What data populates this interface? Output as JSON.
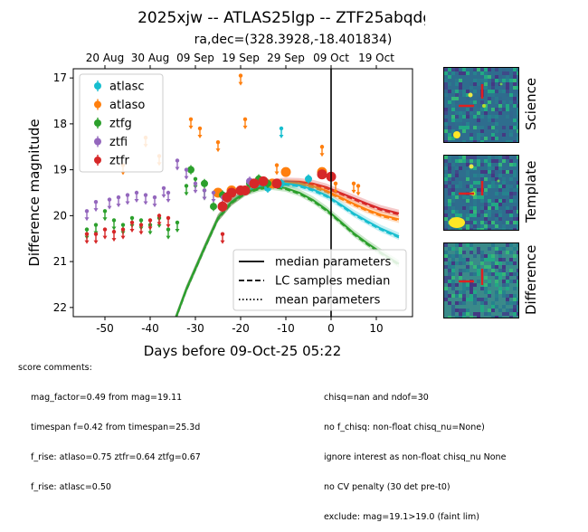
{
  "title": "2025xjw -- ATLAS25lgp -- ZTF25abqdgrb",
  "chart_data": {
    "type": "scatter",
    "subtitle": "ra,dec=(328.3928,-18.401834)",
    "xlabel": "Days before 09-Oct-25 05:22",
    "ylabel": "Difference magnitude",
    "xlim": [
      -57,
      18
    ],
    "ylim": [
      22.2,
      16.8
    ],
    "y_inverted": true,
    "xticks": [
      -50,
      -40,
      -30,
      -20,
      -10,
      0,
      10
    ],
    "yticks": [
      17,
      18,
      19,
      20,
      21,
      22
    ],
    "top_axis_ticks": [
      {
        "label": "20 Aug",
        "x": -50
      },
      {
        "label": "30 Aug",
        "x": -40
      },
      {
        "label": "09 Sep",
        "x": -30
      },
      {
        "label": "19 Sep",
        "x": -20
      },
      {
        "label": "29 Sep",
        "x": -10
      },
      {
        "label": "09 Oct",
        "x": 0
      },
      {
        "label": "19 Oct",
        "x": 10
      }
    ],
    "reference_line_x": 0,
    "legend_placement": "upper-left",
    "series": [
      {
        "name": "atlasc",
        "color": "#17becf",
        "kind": "detection",
        "points": [
          [
            -14,
            19.4,
            0.1
          ],
          [
            -11,
            19.3,
            0.1
          ],
          [
            -5,
            19.2,
            0.1
          ]
        ],
        "limits": [
          [
            -11,
            18.1
          ]
        ]
      },
      {
        "name": "atlaso",
        "color": "#ff7f0e",
        "kind": "detection",
        "points": [
          [
            -25,
            19.5,
            0.1
          ],
          [
            -22,
            19.45,
            0.1
          ],
          [
            -17,
            19.3,
            0.1
          ],
          [
            -13,
            19.3,
            0.1
          ],
          [
            -10,
            19.05,
            0.1
          ],
          [
            -2,
            19.05,
            0.1
          ]
        ],
        "limits": [
          [
            -46,
            18.9
          ],
          [
            -41,
            18.3
          ],
          [
            -38,
            18.7
          ],
          [
            -31,
            17.9
          ],
          [
            -29,
            18.1
          ],
          [
            -25,
            18.4
          ],
          [
            -20,
            16.95
          ],
          [
            -19,
            17.9
          ],
          [
            -12,
            18.9
          ],
          [
            -2,
            18.5
          ],
          [
            1,
            19.3
          ],
          [
            5,
            19.3
          ],
          [
            6,
            19.35
          ]
        ]
      },
      {
        "name": "ztfg",
        "color": "#2ca02c",
        "kind": "detection",
        "points": [
          [
            -31,
            19.0,
            0.1
          ],
          [
            -28,
            19.3,
            0.1
          ],
          [
            -26,
            19.8,
            0.1
          ],
          [
            -24,
            19.55,
            0.1
          ],
          [
            -22,
            19.5,
            0.1
          ],
          [
            -20,
            19.45,
            0.1
          ],
          [
            -18,
            19.3,
            0.1
          ],
          [
            -16,
            19.2,
            0.1
          ],
          [
            -14,
            19.3,
            0.1
          ]
        ],
        "limits": [
          [
            -54,
            20.3
          ],
          [
            -52,
            20.2
          ],
          [
            -50,
            19.9
          ],
          [
            -48,
            20.1
          ],
          [
            -46,
            20.2
          ],
          [
            -44,
            20.05
          ],
          [
            -42,
            20.1
          ],
          [
            -40,
            20.2
          ],
          [
            -38,
            20.05
          ],
          [
            -36,
            20.3
          ],
          [
            -34,
            20.15
          ],
          [
            -32,
            19.35
          ],
          [
            -30,
            19.2
          ],
          [
            -28,
            19.45
          ]
        ]
      },
      {
        "name": "ztfi",
        "color": "#9467bd",
        "kind": "detection",
        "points": [
          [
            -18,
            19.25,
            0.1
          ]
        ],
        "limits": [
          [
            -54,
            19.9
          ],
          [
            -52,
            19.7
          ],
          [
            -49,
            19.65
          ],
          [
            -47,
            19.6
          ],
          [
            -45,
            19.55
          ],
          [
            -43,
            19.5
          ],
          [
            -41,
            19.55
          ],
          [
            -39,
            19.6
          ],
          [
            -37,
            19.4
          ],
          [
            -36,
            19.5
          ],
          [
            -34,
            18.8
          ],
          [
            -32,
            19.0
          ],
          [
            -30,
            19.3
          ],
          [
            -28,
            19.45
          ],
          [
            -26,
            19.5
          ],
          [
            -24,
            19.6
          ]
        ]
      },
      {
        "name": "ztfr",
        "color": "#d62728",
        "kind": "detection",
        "points": [
          [
            -24,
            19.8,
            0.12
          ],
          [
            -23,
            19.6,
            0.12
          ],
          [
            -22,
            19.5,
            0.1
          ],
          [
            -20,
            19.45,
            0.1
          ],
          [
            -19,
            19.45,
            0.1
          ],
          [
            -17,
            19.3,
            0.1
          ],
          [
            -15,
            19.25,
            0.1
          ],
          [
            -12,
            19.3,
            0.1
          ],
          [
            -2,
            19.1,
            0.1
          ],
          [
            0,
            19.15,
            0.1
          ]
        ],
        "limits": [
          [
            -54,
            20.4
          ],
          [
            -52,
            20.4
          ],
          [
            -50,
            20.3
          ],
          [
            -48,
            20.35
          ],
          [
            -46,
            20.3
          ],
          [
            -44,
            20.15
          ],
          [
            -42,
            20.2
          ],
          [
            -40,
            20.1
          ],
          [
            -38,
            20.0
          ],
          [
            -36,
            20.05
          ],
          [
            -24,
            20.4
          ]
        ]
      }
    ],
    "models": [
      {
        "band": "ztfr",
        "color": "#d62728",
        "x": [
          -35,
          -32,
          -28,
          -25,
          -22,
          -19,
          -16,
          -13,
          -10,
          -7,
          -4,
          -1,
          2,
          5,
          8,
          11,
          15
        ],
        "y": [
          22.4,
          21.6,
          20.7,
          20.05,
          19.7,
          19.48,
          19.35,
          19.28,
          19.25,
          19.26,
          19.3,
          19.38,
          19.5,
          19.62,
          19.74,
          19.85,
          19.95
        ]
      },
      {
        "band": "atlaso",
        "color": "#ff7f0e",
        "x": [
          -35,
          -32,
          -28,
          -25,
          -22,
          -19,
          -16,
          -13,
          -10,
          -7,
          -4,
          -1,
          2,
          5,
          8,
          11,
          15
        ],
        "y": [
          22.4,
          21.6,
          20.7,
          20.05,
          19.7,
          19.48,
          19.36,
          19.3,
          19.28,
          19.3,
          19.36,
          19.46,
          19.6,
          19.74,
          19.87,
          19.98,
          20.08
        ]
      },
      {
        "band": "atlasc",
        "color": "#17becf",
        "x": [
          -35,
          -32,
          -28,
          -25,
          -22,
          -19,
          -16,
          -13,
          -10,
          -7,
          -4,
          -1,
          2,
          5,
          8,
          11,
          15
        ],
        "y": [
          22.4,
          21.6,
          20.7,
          20.05,
          19.7,
          19.48,
          19.36,
          19.3,
          19.3,
          19.34,
          19.43,
          19.56,
          19.75,
          19.95,
          20.12,
          20.28,
          20.45
        ]
      },
      {
        "band": "ztfg",
        "color": "#2ca02c",
        "x": [
          -35,
          -32,
          -28,
          -25,
          -22,
          -19,
          -16,
          -13,
          -10,
          -7,
          -4,
          -1,
          2,
          5,
          8,
          11,
          15
        ],
        "y": [
          22.4,
          21.6,
          20.7,
          20.05,
          19.7,
          19.5,
          19.4,
          19.36,
          19.4,
          19.5,
          19.66,
          19.87,
          20.12,
          20.38,
          20.6,
          20.8,
          21.05
        ]
      }
    ],
    "fit_legend": [
      {
        "label": "median parameters",
        "style": "solid"
      },
      {
        "label": "LC samples median",
        "style": "dashed"
      },
      {
        "label": "mean parameters",
        "style": "dotted"
      }
    ]
  },
  "stamps": [
    {
      "label": "Science"
    },
    {
      "label": "Template"
    },
    {
      "label": "Difference"
    }
  ],
  "comments": {
    "header": "score comments:",
    "left": [
      "mag_factor=0.49 from mag=19.11",
      "timespan f=0.42 from timespan=25.3d",
      "f_rise: atlaso=0.75 ztfr=0.64 ztfg=0.67",
      "f_rise: atlasc=0.50"
    ],
    "right": [
      "chisq=nan and ndof=30",
      "no f_chisq: non-float chisq_nu=None)",
      "ignore interest as non-float chisq_nu None",
      "no CV penalty (30 det pre-t0)",
      "exclude: mag=19.1>19.0 (faint lim)"
    ]
  }
}
